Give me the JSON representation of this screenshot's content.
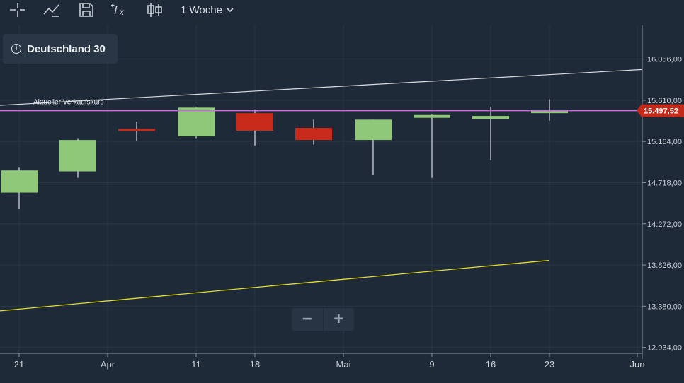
{
  "toolbar": {
    "interval_label": "1 Woche",
    "icons": [
      "crosshair-icon",
      "trend-line-icon",
      "save-icon",
      "indicator-fx-icon",
      "chart-type-candlestick-icon",
      "chevron-down-icon"
    ]
  },
  "instrument": {
    "name": "Deutschland 30"
  },
  "price_line_label": "Aktueller Verkaufskurs",
  "current_price_label": "15.497,52",
  "zoom": {
    "minus": "−",
    "plus": "+"
  },
  "colors": {
    "background": "#1f2a38",
    "up": "#8fc878",
    "down": "#c7291a",
    "price_line": "#c86be0",
    "price_badge": "#c42a1a",
    "trend_upper": "#d8dde3",
    "trend_lower": "#e3de2a"
  },
  "chart_data": {
    "type": "candlestick",
    "x_ticks": [
      "21",
      "Apr",
      "11",
      "18",
      "Mai",
      "9",
      "16",
      "23",
      "Jun"
    ],
    "y_ticks": [
      "16.056,00",
      "15.610,00",
      "15.164,00",
      "14.718,00",
      "14.272,00",
      "13.826,00",
      "13.380,00",
      "12.934,00"
    ],
    "y_tick_values": [
      16056,
      15610,
      15164,
      14718,
      14272,
      13826,
      13380,
      12934
    ],
    "ylim": [
      12870,
      16420
    ],
    "candles": [
      {
        "x": "21",
        "open": 14610,
        "high": 14880,
        "low": 14430,
        "close": 14850
      },
      {
        "x": "28",
        "open": 14840,
        "high": 15200,
        "low": 14770,
        "close": 15180
      },
      {
        "x": "Apr",
        "open": 15300,
        "high": 15380,
        "low": 15170,
        "close": 15280
      },
      {
        "x": "11",
        "open": 15220,
        "high": 15540,
        "low": 15200,
        "close": 15530
      },
      {
        "x": "18",
        "open": 15470,
        "high": 15510,
        "low": 15120,
        "close": 15280
      },
      {
        "x": "25",
        "open": 15310,
        "high": 15400,
        "low": 15130,
        "close": 15180
      },
      {
        "x": "Mai",
        "open": 15180,
        "high": 15400,
        "low": 14800,
        "close": 15400
      },
      {
        "x": "9",
        "open": 15420,
        "high": 15460,
        "low": 14770,
        "close": 15450
      },
      {
        "x": "16",
        "open": 15410,
        "high": 15540,
        "low": 14960,
        "close": 15440
      },
      {
        "x": "23",
        "open": 15470,
        "high": 15620,
        "low": 15390,
        "close": 15500
      }
    ],
    "current_price": 15497.52,
    "trend_lines": [
      {
        "name": "upper",
        "start": {
          "x": "before 21",
          "y": 15555
        },
        "end": {
          "x": "after 23",
          "y": 15943
        }
      },
      {
        "name": "lower",
        "start": {
          "x": "before 21",
          "y": 13330
        },
        "end": {
          "x": "23",
          "y": 13876
        }
      }
    ],
    "grid": true
  }
}
